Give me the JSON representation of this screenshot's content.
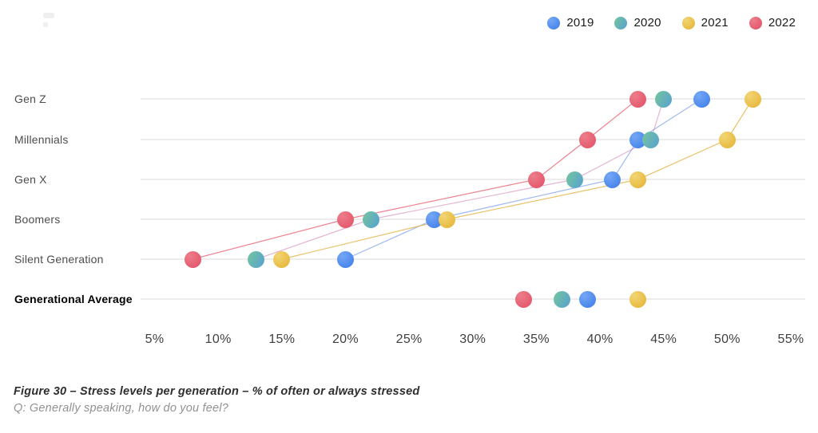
{
  "legend_title": "",
  "caption": {
    "line1": "Figure 30 – Stress levels per generation – % of often or always stressed",
    "line2": "Q: Generally speaking, how do you feel?"
  },
  "chart_data": {
    "type": "scatter",
    "title": "Stress levels per generation – % of often or always stressed",
    "xlabel": "",
    "ylabel": "",
    "x_unit": "%",
    "x_range": [
      5,
      55
    ],
    "x_ticks": [
      "5%",
      "10%",
      "15%",
      "20%",
      "25%",
      "30%",
      "35%",
      "40%",
      "45%",
      "50%",
      "55%"
    ],
    "grid": "horizontal-row-lines",
    "legend_position": "top-right",
    "categories": [
      "Gen Z",
      "Millennials",
      "Gen X",
      "Boomers",
      "Silent Generation",
      "Generational Average"
    ],
    "connected_categories_note": "lines connect the five generation rows per year; Generational Average dots are not connected",
    "series": [
      {
        "name": "2019",
        "values": [
          48,
          43,
          41,
          27,
          20,
          39
        ],
        "dot_colors": [
          "#74a7f5",
          "#3a7ae9"
        ],
        "gradient_type": "radial",
        "line_color": "rgba(80,125,225,0.55)"
      },
      {
        "name": "2020",
        "values": [
          45,
          44,
          38,
          22,
          13,
          37
        ],
        "dot_colors": [
          "#74c69d",
          "#57a0d2"
        ],
        "gradient_type": "linear",
        "line_color": "rgba(200,110,170,0.5)"
      },
      {
        "name": "2021",
        "values": [
          52,
          50,
          43,
          28,
          15,
          43
        ],
        "dot_colors": [
          "#f2d574",
          "#e4b12e"
        ],
        "gradient_type": "radial",
        "line_color": "rgba(228,178,66,0.8)"
      },
      {
        "name": "2022",
        "values": [
          43,
          39,
          35,
          20,
          8,
          34
        ],
        "dot_colors": [
          "#ee7d8b",
          "#e04e63"
        ],
        "gradient_type": "radial",
        "line_color": "rgba(228,88,106,0.75)"
      }
    ]
  }
}
